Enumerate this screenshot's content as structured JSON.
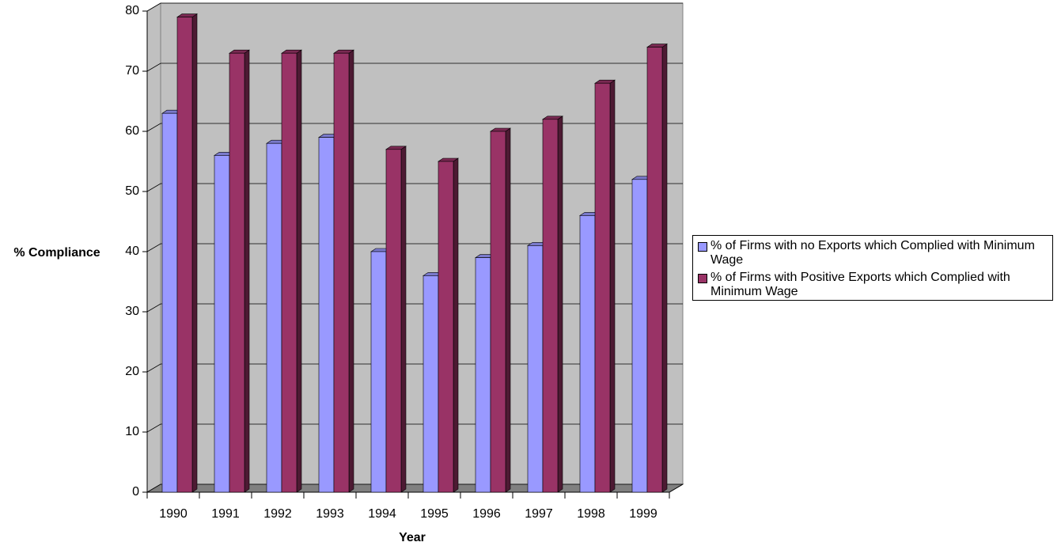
{
  "chart_data": {
    "type": "bar3d",
    "x_label": "Year",
    "y_label": "% Compliance",
    "categories": [
      "1990",
      "1991",
      "1992",
      "1993",
      "1994",
      "1995",
      "1996",
      "1997",
      "1998",
      "1999"
    ],
    "series": [
      {
        "name": "% of Firms with no Exports which Complied with Minimum Wage",
        "color": "#9999ff",
        "values": [
          63,
          56,
          58,
          59,
          40,
          36,
          39,
          41,
          46,
          52
        ]
      },
      {
        "name": "% of Firms with Positive Exports which Complied with Minimum Wage",
        "color": "#993366",
        "values": [
          79,
          73,
          73,
          73,
          57,
          55,
          60,
          62,
          68,
          74
        ]
      }
    ],
    "ylim": [
      0,
      80
    ],
    "yticks": [
      0,
      10,
      20,
      30,
      40,
      50,
      60,
      70,
      80
    ],
    "grid": true,
    "legend": "right"
  }
}
